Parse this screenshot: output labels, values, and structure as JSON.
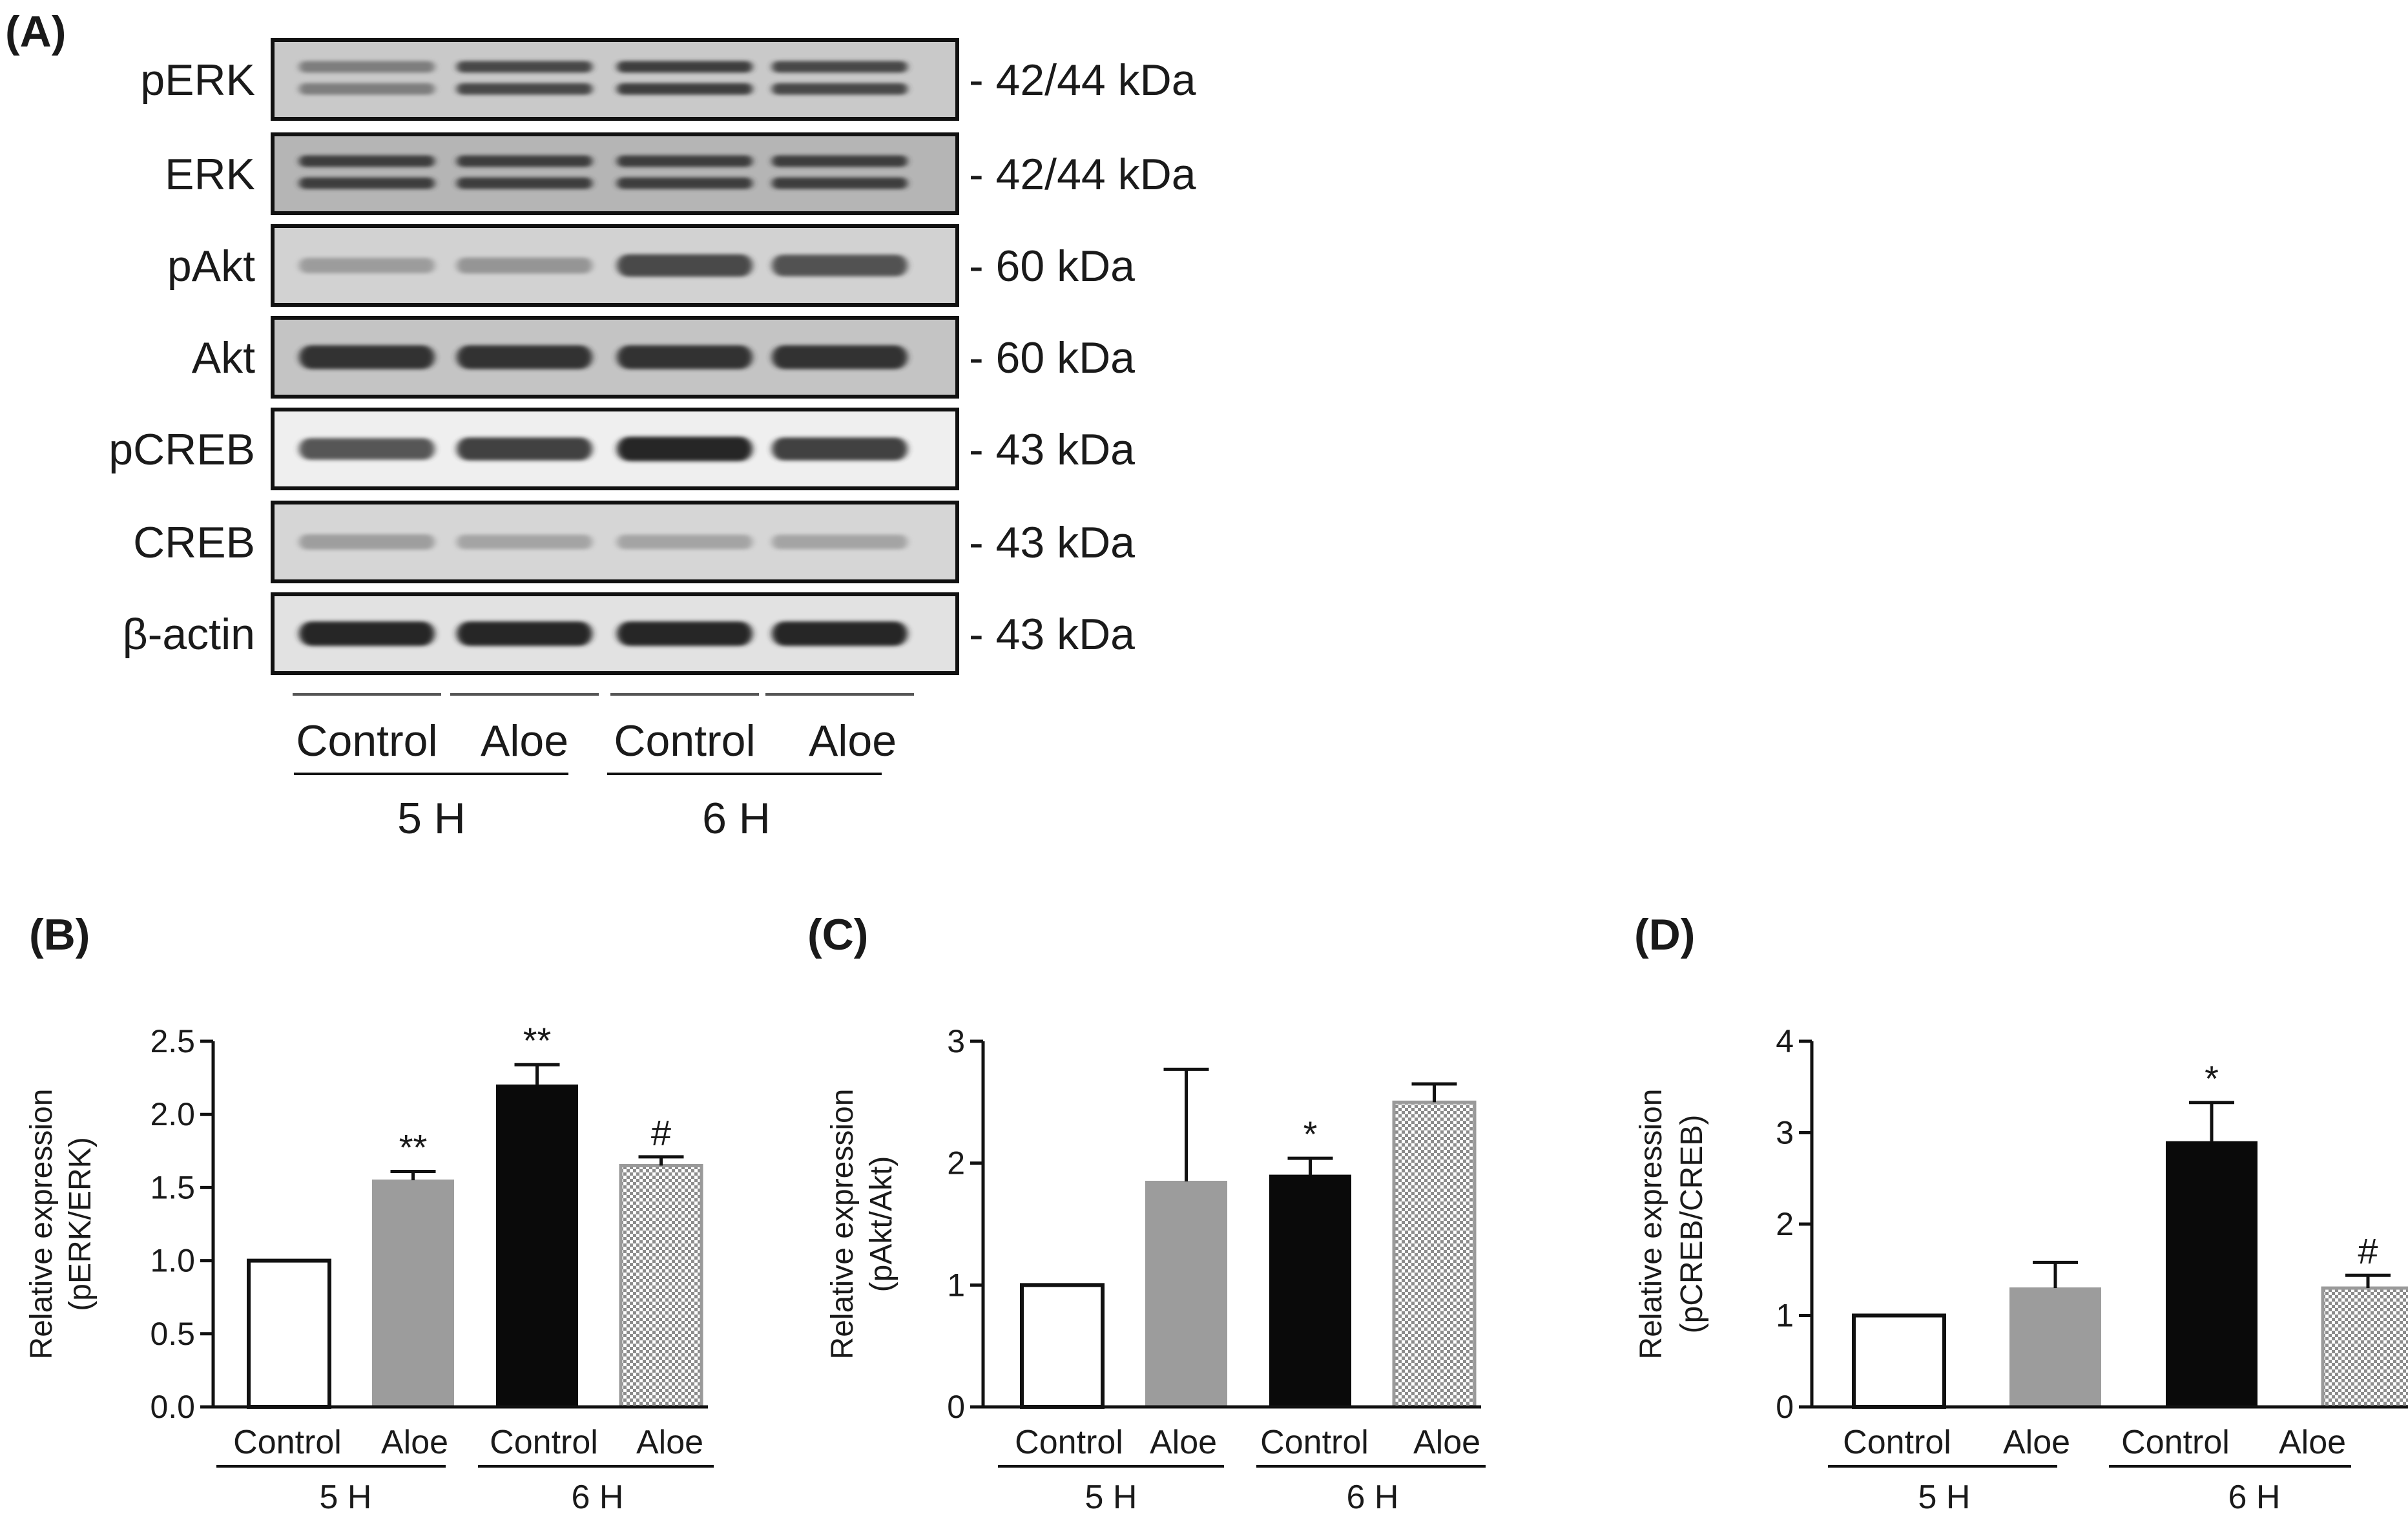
{
  "western_blot": {
    "panel_label": "(A)",
    "rows": [
      {
        "name": "pERK",
        "kda": "- 42/44 kDa",
        "bands": [
          0.55,
          0.85,
          0.9,
          0.85
        ],
        "double": true,
        "bg": "#c9c9c9"
      },
      {
        "name": "ERK",
        "kda": "- 42/44 kDa",
        "bands": [
          0.9,
          0.9,
          0.9,
          0.9
        ],
        "double": true,
        "bg": "#b5b5b5"
      },
      {
        "name": "pAkt",
        "kda": "- 60 kDa",
        "bands": [
          0.35,
          0.4,
          0.85,
          0.8
        ],
        "double": false,
        "bg": "#d2d2d2"
      },
      {
        "name": "Akt",
        "kda": "- 60 kDa",
        "bands": [
          0.95,
          0.95,
          0.95,
          0.95
        ],
        "double": false,
        "bg": "#c4c4c4"
      },
      {
        "name": "pCREB",
        "kda": "- 43 kDa",
        "bands": [
          0.8,
          0.9,
          1.0,
          0.9
        ],
        "double": false,
        "bg": "#efefef"
      },
      {
        "name": "CREB",
        "kda": "- 43 kDa",
        "bands": [
          0.35,
          0.3,
          0.3,
          0.3
        ],
        "double": false,
        "bg": "#d6d6d6"
      },
      {
        "name": "β-actin",
        "kda": "- 43 kDa",
        "bands": [
          1.0,
          1.0,
          1.0,
          1.0
        ],
        "double": false,
        "bg": "#e2e2e2"
      }
    ],
    "lanes": [
      "Control",
      "Aloe",
      "Control",
      "Aloe"
    ],
    "groups": [
      "5 H",
      "6 H"
    ]
  },
  "chart_data": [
    {
      "panel": "(B)",
      "type": "bar",
      "ylabel_lines": [
        "Relative expression",
        "(pERK/ERK)"
      ],
      "ylim": [
        0,
        2.5
      ],
      "ticks": [
        "0.0",
        "0.5",
        "1.0",
        "1.5",
        "2.0",
        "2.5"
      ],
      "tick_values": [
        0,
        0.5,
        1.0,
        1.5,
        2.0,
        2.5
      ],
      "categories": [
        "Control",
        "Aloe",
        "Control",
        "Aloe"
      ],
      "groups": [
        "5 H",
        "6 H"
      ],
      "values": [
        1.0,
        1.55,
        2.2,
        1.65
      ],
      "errors": [
        0,
        0.06,
        0.14,
        0.06
      ],
      "significance": [
        "",
        "**",
        "**",
        "#"
      ],
      "styles": [
        "white",
        "gray",
        "black",
        "checker"
      ]
    },
    {
      "panel": "(C)",
      "type": "bar",
      "ylabel_lines": [
        "Relative expression",
        "(pAkt/Akt)"
      ],
      "ylim": [
        0,
        3
      ],
      "ticks": [
        "0",
        "1",
        "2",
        "3"
      ],
      "tick_values": [
        0,
        1,
        2,
        3
      ],
      "categories": [
        "Control",
        "Aloe",
        "Control",
        "Aloe"
      ],
      "groups": [
        "5 H",
        "6 H"
      ],
      "values": [
        1.0,
        1.85,
        1.9,
        2.5
      ],
      "errors": [
        0,
        0.92,
        0.14,
        0.15
      ],
      "significance": [
        "",
        "",
        "*",
        ""
      ],
      "styles": [
        "white",
        "gray",
        "black",
        "checker"
      ]
    },
    {
      "panel": "(D)",
      "type": "bar",
      "ylabel_lines": [
        "Relative expression",
        "(pCREB/CREB)"
      ],
      "ylim": [
        0,
        4
      ],
      "ticks": [
        "0",
        "1",
        "2",
        "3",
        "4"
      ],
      "tick_values": [
        0,
        1,
        2,
        3,
        4
      ],
      "categories": [
        "Control",
        "Aloe",
        "Control",
        "Aloe"
      ],
      "groups": [
        "5 H",
        "6 H"
      ],
      "values": [
        1.0,
        1.3,
        2.9,
        1.3
      ],
      "errors": [
        0,
        0.28,
        0.43,
        0.14
      ],
      "significance": [
        "",
        "",
        "*",
        "#"
      ],
      "styles": [
        "white",
        "gray",
        "black",
        "checker"
      ]
    }
  ]
}
